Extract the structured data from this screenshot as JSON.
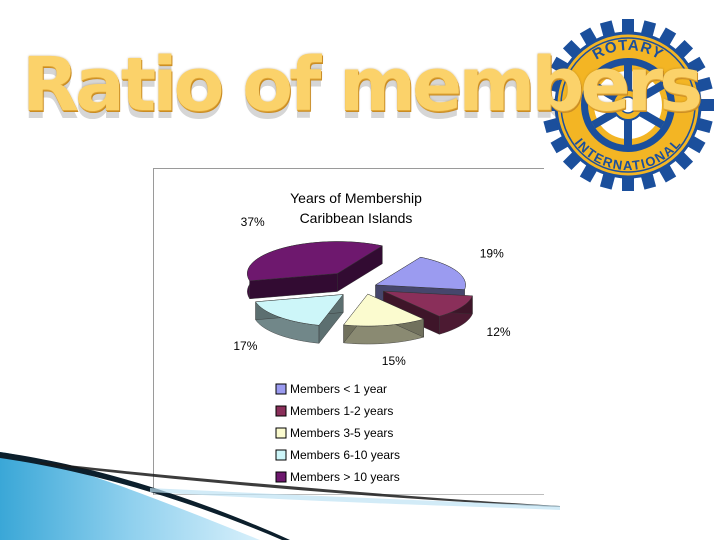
{
  "slide": {
    "title": "Ratio of members"
  },
  "logo": {
    "top_text": "ROTARY",
    "bottom_text": "INTERNATIONAL",
    "colors": {
      "blue": "#1b4f9c",
      "gold": "#f3b524"
    }
  },
  "chart_data": {
    "type": "pie",
    "style": "3d-exploded",
    "title": [
      "Years of Membership",
      "Caribbean Islands"
    ],
    "series": [
      {
        "name": "Members < 1 year",
        "value": 19,
        "label": "19%",
        "color": "#9b9bf0"
      },
      {
        "name": "Members 1-2 years",
        "value": 12,
        "label": "12%",
        "color": "#8a2f5a"
      },
      {
        "name": "Members 3-5 years",
        "value": 15,
        "label": "15%",
        "color": "#fbfbcf"
      },
      {
        "name": "Members 6-10 years",
        "value": 17,
        "label": "17%",
        "color": "#cdf6f9"
      },
      {
        "name": "Members > 10 years",
        "value": 37,
        "label": "37%",
        "color": "#6e186e"
      }
    ],
    "legend_position": "bottom"
  }
}
